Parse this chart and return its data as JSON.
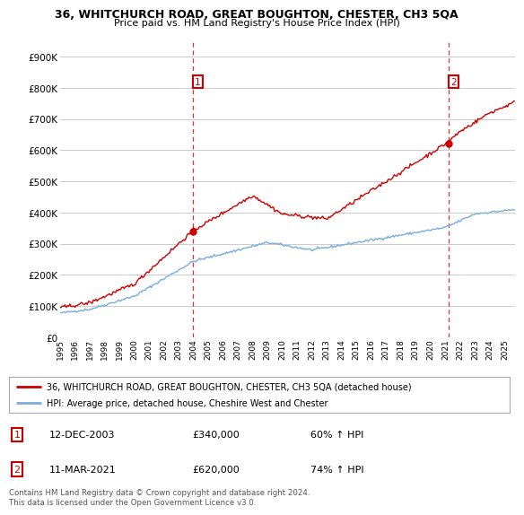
{
  "title": "36, WHITCHURCH ROAD, GREAT BOUGHTON, CHESTER, CH3 5QA",
  "subtitle": "Price paid vs. HM Land Registry's House Price Index (HPI)",
  "ylabel_ticks": [
    "£0",
    "£100K",
    "£200K",
    "£300K",
    "£400K",
    "£500K",
    "£600K",
    "£700K",
    "£800K",
    "£900K"
  ],
  "ytick_vals": [
    0,
    100000,
    200000,
    300000,
    400000,
    500000,
    600000,
    700000,
    800000,
    900000
  ],
  "ylim": [
    0,
    950000
  ],
  "xlim_start": 1995.0,
  "xlim_end": 2025.7,
  "sale1_x": 2003.95,
  "sale1_y": 340000,
  "sale1_label": "1",
  "sale2_x": 2021.2,
  "sale2_y": 620000,
  "sale2_label": "2",
  "hpi_color": "#7aaddc",
  "property_color": "#cc0000",
  "dashed_color": "#cc0000",
  "background_color": "#ffffff",
  "grid_color": "#cccccc",
  "legend_label1": "36, WHITCHURCH ROAD, GREAT BOUGHTON, CHESTER, CH3 5QA (detached house)",
  "legend_label2": "HPI: Average price, detached house, Cheshire West and Chester",
  "table_entries": [
    {
      "num": "1",
      "date": "12-DEC-2003",
      "price": "£340,000",
      "pct": "60% ↑ HPI"
    },
    {
      "num": "2",
      "date": "11-MAR-2021",
      "price": "£620,000",
      "pct": "74% ↑ HPI"
    }
  ],
  "footer": "Contains HM Land Registry data © Crown copyright and database right 2024.\nThis data is licensed under the Open Government Licence v3.0."
}
